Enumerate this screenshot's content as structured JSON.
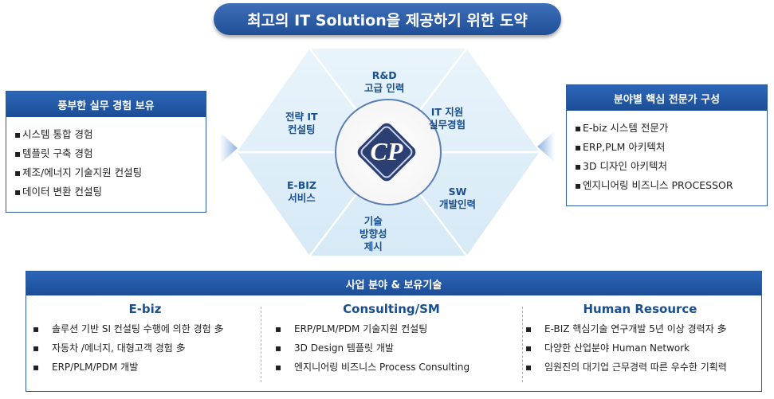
{
  "title": "최고의 IT Solution을 제공하기 위한 도약",
  "left_panel": {
    "heading": "풍부한 실무 경험 보유",
    "items": [
      "시스템 통합 경험",
      "템플릿 구축 경험",
      "제조/에너지 기술지원 컨설팅",
      "데이터 변환 컨설팅"
    ]
  },
  "right_panel": {
    "heading": "분야별 핵심 전문가 구성",
    "items": [
      "E-biz 시스템 전문가",
      "ERP,PLM 아키텍처",
      "3D 디자인 아키텍처",
      "엔지니어링 비즈니스 PROCESSOR"
    ]
  },
  "hexagon": {
    "logo_text": "CP",
    "segments": {
      "top": [
        "R&D",
        "고급 인력"
      ],
      "top_right": [
        "IT 지원",
        "실무경험"
      ],
      "bottom_right": [
        "SW",
        "개발인력"
      ],
      "bottom": [
        "기술",
        "방향성",
        "제시"
      ],
      "bottom_left": [
        "E-BIZ",
        "서비스"
      ],
      "top_left": [
        "전략 IT",
        "컨설팅"
      ]
    }
  },
  "bottom_panel": {
    "heading": "사업 분야 & 보유기술",
    "columns": [
      {
        "title": "E-biz",
        "items": [
          "솔루션 기반 SI 컨설팅 수행에 의한 경험 多",
          "자동차 /에너지, 대형고객 경험 多",
          "ERP/PLM/PDM 개발"
        ]
      },
      {
        "title": "Consulting/SM",
        "items": [
          "ERP/PLM/PDM 기술지원 컨설팅",
          "3D Design 템플릿 개발",
          "엔지니어링 비즈니스 Process Consulting"
        ]
      },
      {
        "title": "Human Resource",
        "items": [
          "E-BIZ 핵심기술 연구개발 5년 이상 경력자 多",
          "다양한 산업분야 Human Network",
          "임원진의 대기업 근무경력 따른 우수한 기획력"
        ]
      }
    ]
  },
  "bullet_glyph": "▪",
  "colors": {
    "primary": "#2c66b8",
    "dark": "#1c4d96",
    "hex_fill": "#e6f2fa",
    "hex_line": "#ffffff",
    "label": "#1a4f8f"
  }
}
